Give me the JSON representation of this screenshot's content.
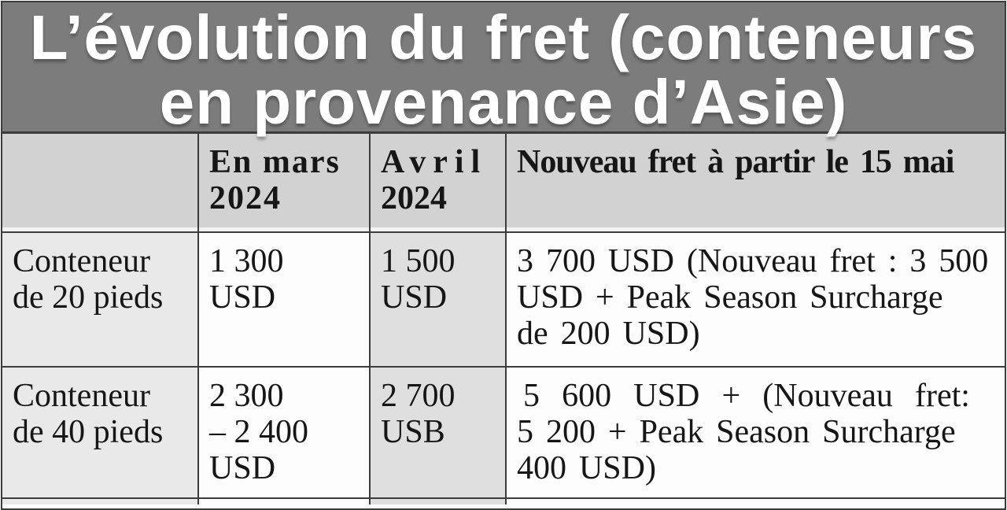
{
  "colors": {
    "banner_background": "#7c7c7c",
    "banner_text": "#ffffff",
    "header_cell_background": "#d2d2d2",
    "gray_column_1_background": "#e9e9e9",
    "gray_column_3_background": "#dfdfdf",
    "white_cell_background": "#fdfdfd",
    "grid_border": "#3c3c3c",
    "body_text": "#161616"
  },
  "display": {
    "title": {
      "lines": [
        "L’évolution du fret (conteneurs",
        "en provenance d’Asie)"
      ]
    },
    "header": [
      {
        "lines": []
      },
      {
        "lines": [
          "En mars",
          "2024"
        ]
      },
      {
        "lines": [
          "Avril",
          "2024"
        ]
      },
      {
        "lines": [
          "Nouveau fret à partir le 15 mai"
        ]
      }
    ],
    "rows": [
      {
        "cells": [
          {
            "lines": [
              "Conteneur",
              "de 20 pieds"
            ]
          },
          {
            "lines": [
              "1 300",
              "USD"
            ]
          },
          {
            "lines": [
              "1 500",
              "USD"
            ]
          },
          {
            "lines": [
              "3 700 USD (Nouveau fret : 3 500",
              "USD + Peak Season Surcharge",
              "de 200 USD)"
            ]
          }
        ]
      },
      {
        "cells": [
          {
            "lines": [
              "Conteneur",
              "de 40 pieds"
            ]
          },
          {
            "lines": [
              "2 300",
              "– 2 400",
              "USD"
            ]
          },
          {
            "lines": [
              "2 700",
              "USB"
            ]
          },
          {
            "lines": [
              "5 600 USD + (Nouveau fret:",
              "5 200 + Peak Season Surcharge",
              "400 USD)"
            ]
          }
        ]
      }
    ]
  },
  "chart_data": {
    "type": "table",
    "title": "L’évolution du fret (conteneurs en provenance d’Asie)",
    "columns": [
      "",
      "En mars 2024",
      "Avril 2024",
      "Nouveau fret à partir le 15 mai"
    ],
    "rows": [
      [
        "Conteneur de 20 pieds",
        "1 300 USD",
        "1 500 USD",
        "3 700 USD (Nouveau fret : 3 500 USD + Peak Season Surcharge de 200 USD)"
      ],
      [
        "Conteneur de 40 pieds",
        "2 300 – 2 400 USD",
        "2 700 USB",
        "5 600 USD + (Nouveau fret: 5 200 + Peak Season Surcharge 400 USD)"
      ]
    ],
    "values_usd": {
      "conteneur_20_pieds": {
        "mars_2024": 1300,
        "avril_2024": 1500,
        "nouveau_fret_15_mai_total": 3700,
        "nouveau_fret": 3500,
        "peak_season_surcharge": 200
      },
      "conteneur_40_pieds": {
        "mars_2024_min": 2300,
        "mars_2024_max": 2400,
        "avril_2024": 2700,
        "nouveau_fret_15_mai_total": 5600,
        "nouveau_fret": 5200,
        "peak_season_surcharge": 400
      }
    }
  }
}
